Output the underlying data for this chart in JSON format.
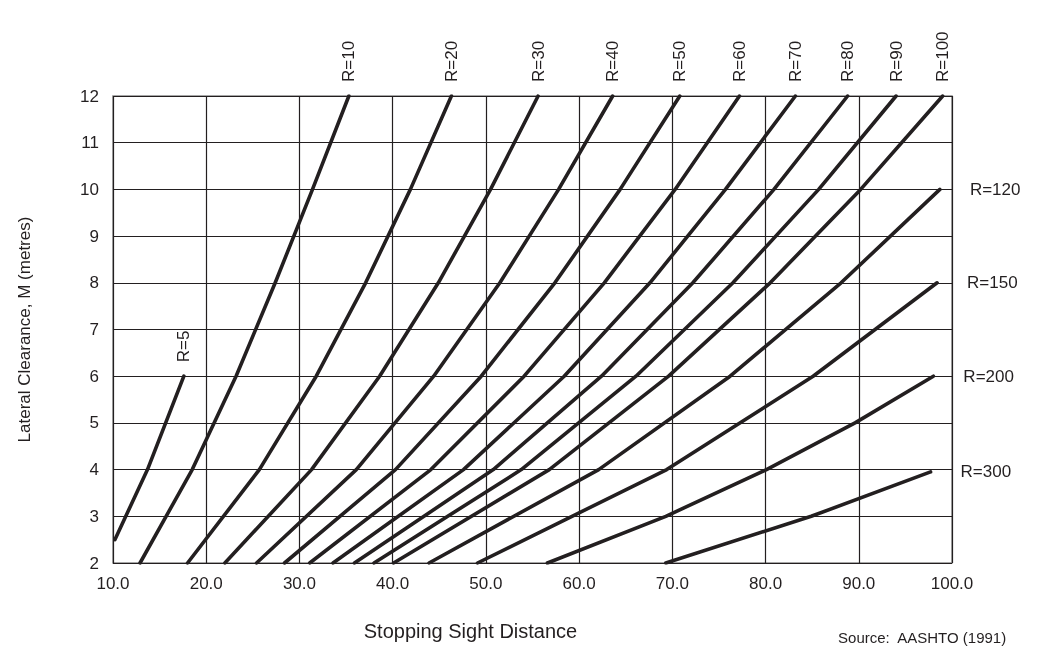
{
  "chart_data": {
    "type": "line",
    "xlabel": "Stopping Sight Distance",
    "ylabel": "Lateral Clearance, M (metres)",
    "annotations": [
      "Source:  AASHTO (1991)"
    ],
    "xlim": [
      10,
      100
    ],
    "ylim": [
      2,
      12
    ],
    "xticks": [
      {
        "value": 10,
        "label": "10.0"
      },
      {
        "value": 20,
        "label": "20.0"
      },
      {
        "value": 30,
        "label": "30.0"
      },
      {
        "value": 40,
        "label": "40.0"
      },
      {
        "value": 50,
        "label": "50.0"
      },
      {
        "value": 60,
        "label": "60.0"
      },
      {
        "value": 70,
        "label": "70.0"
      },
      {
        "value": 80,
        "label": "80.0"
      },
      {
        "value": 90,
        "label": "90.0"
      },
      {
        "value": 100,
        "label": "100.0"
      }
    ],
    "yticks": [
      2,
      3,
      4,
      5,
      6,
      7,
      8,
      9,
      10,
      11,
      12
    ],
    "grid": true,
    "legend": false,
    "marker": "none",
    "line_style": "solid",
    "series": [
      {
        "name": "R=5",
        "color": "#231f20",
        "x": [
          10.2,
          13.7,
          17.6
        ],
        "values": [
          2.5,
          4,
          6
        ]
      },
      {
        "name": "R=10",
        "color": "#231f20",
        "x": [
          12.9,
          18.5,
          23.2,
          27.4,
          31.4,
          35.3
        ],
        "values": [
          2,
          4,
          6,
          8,
          10,
          12
        ]
      },
      {
        "name": "R=20",
        "color": "#231f20",
        "x": [
          18,
          25.7,
          31.8,
          37.1,
          41.9,
          46.3
        ],
        "values": [
          2,
          4,
          6,
          8,
          10,
          12
        ]
      },
      {
        "name": "R=30",
        "color": "#231f20",
        "x": [
          22,
          31.3,
          38.6,
          44.9,
          50.5,
          55.6
        ],
        "values": [
          2,
          4,
          6,
          8,
          10,
          12
        ]
      },
      {
        "name": "R=40",
        "color": "#231f20",
        "x": [
          25.4,
          36.1,
          44.4,
          51.5,
          57.8,
          63.6
        ],
        "values": [
          2,
          4,
          6,
          8,
          10,
          12
        ]
      },
      {
        "name": "R=50",
        "color": "#231f20",
        "x": [
          28.4,
          40.3,
          49.5,
          57.4,
          64.4,
          70.8
        ],
        "values": [
          2,
          4,
          6,
          8,
          10,
          12
        ]
      },
      {
        "name": "R=60",
        "color": "#231f20",
        "x": [
          31.1,
          44.1,
          54.1,
          62.7,
          70.3,
          77.2
        ],
        "values": [
          2,
          4,
          6,
          8,
          10,
          12
        ]
      },
      {
        "name": "R=70",
        "color": "#231f20",
        "x": [
          33.6,
          47.6,
          58.4,
          67.6,
          75.7,
          83.2
        ],
        "values": [
          2,
          4,
          6,
          8,
          10,
          12
        ]
      },
      {
        "name": "R=80",
        "color": "#231f20",
        "x": [
          35.9,
          50.8,
          62.4,
          72.2,
          80.9,
          88.8
        ],
        "values": [
          2,
          4,
          6,
          8,
          10,
          12
        ]
      },
      {
        "name": "R=90",
        "color": "#231f20",
        "x": [
          38,
          53.8,
          66.1,
          76.5,
          85.7,
          94
        ],
        "values": [
          2,
          4,
          6,
          8,
          10,
          12
        ]
      },
      {
        "name": "R=100",
        "color": "#231f20",
        "x": [
          40.1,
          56.8,
          69.6,
          80.5,
          90.2,
          99
        ],
        "values": [
          2,
          4,
          6,
          8,
          10,
          12
        ]
      },
      {
        "name": "R=120",
        "color": "#231f20",
        "x": [
          43.9,
          62.1,
          76.2,
          88.1,
          98.7
        ],
        "values": [
          2,
          4,
          6,
          8,
          10
        ]
      },
      {
        "name": "R=150",
        "color": "#231f20",
        "x": [
          49.1,
          69.4,
          85.1,
          98.4
        ],
        "values": [
          2,
          4,
          6,
          8
        ]
      },
      {
        "name": "R=200",
        "color": "#231f20",
        "x": [
          56.6,
          69.3,
          80.1,
          89.6,
          98
        ],
        "values": [
          2,
          3,
          4,
          5,
          6
        ]
      },
      {
        "name": "R=300",
        "color": "#231f20",
        "x": [
          69.3,
          84.9,
          97.7
        ],
        "values": [
          2,
          3,
          3.95
        ]
      }
    ]
  }
}
